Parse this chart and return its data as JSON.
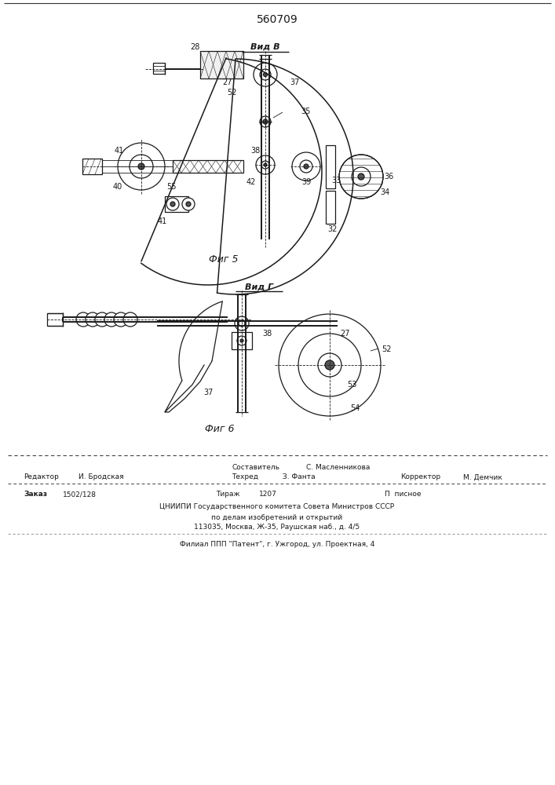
{
  "patent_number": "560709",
  "view_b_label": "Вид В",
  "view_g_label": "Вид Г",
  "fig5_label": "Фиг 5",
  "fig6_label": "Фиг 6",
  "footer": {
    "composer_label": "Составитель",
    "composer_name": "С. Масленникова",
    "editor_label": "Редактор",
    "editor_name": "И. Бродская",
    "techred_label": "Техред",
    "techred_name": "З. Фанта",
    "corrector_label": "Корректор",
    "corrector_name": "М. Демчик",
    "order_label": "Заказ",
    "order_value": "1502/128",
    "tirazh_label": "Тираж",
    "tirazh_value": "1207",
    "podp_label": "П  писное",
    "line1": "ЦНИИПИ Государственного комитета Совета Министров СССР",
    "line2": "по делам изобретений и открытий",
    "line3": "113035, Москва, Ж-35, Раушская наб., д. 4/5",
    "branch_line": "Филиал ППП \"Патент\", г. Ужгород, ул. Проектная, 4"
  },
  "bg_color": "#ffffff",
  "drawing_color": "#1a1a1a"
}
